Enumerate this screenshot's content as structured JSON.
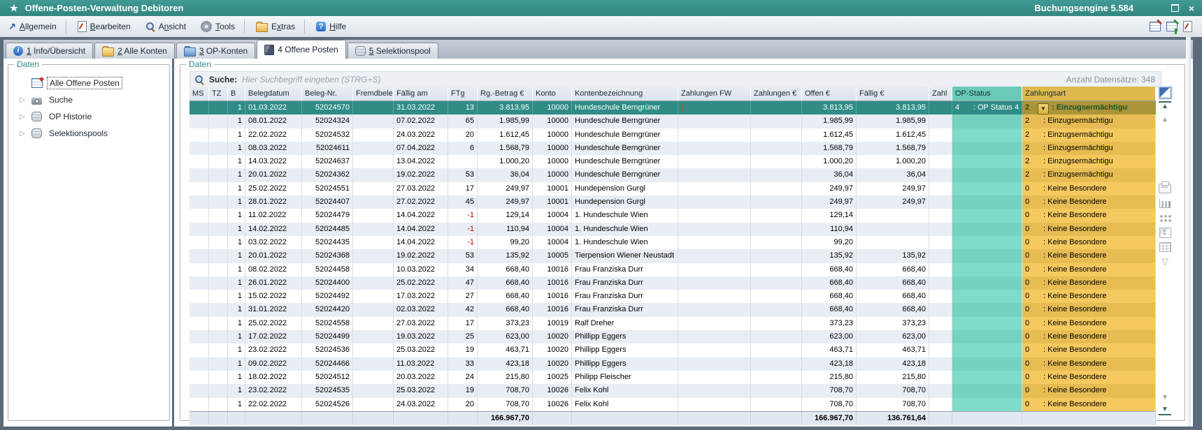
{
  "window": {
    "title": "Offene-Posten-Verwaltung Debitoren",
    "engine": "Buchungsengine 5.584"
  },
  "menu": {
    "items": [
      {
        "label": "Allgemein",
        "underline": 0,
        "icon": "arrow-ne-icon",
        "sep_after": true
      },
      {
        "label": "Bearbeiten",
        "underline": 0,
        "icon": "document-edit-icon",
        "sep_after": false
      },
      {
        "label": "Ansicht",
        "underline": 1,
        "icon": "magnifier-icon",
        "sep_after": false
      },
      {
        "label": "Tools",
        "underline": 0,
        "icon": "gear-icon",
        "sep_after": true
      },
      {
        "label": "Extras",
        "underline": 1,
        "icon": "folder-icon",
        "sep_after": true
      },
      {
        "label": "Hilfe",
        "underline": 0,
        "icon": "help-icon",
        "sep_after": false
      }
    ]
  },
  "tabs": [
    {
      "label": "1 Info/Übersicht",
      "underline": 0,
      "icon": "info-icon",
      "active": false
    },
    {
      "label": "2 Alle Konten",
      "underline": 0,
      "icon": "folder-yellow-icon",
      "active": false
    },
    {
      "label": "3 OP-Konten",
      "underline": 0,
      "icon": "folder-blue-icon",
      "active": false
    },
    {
      "label": "4 Offene Posten",
      "underline": -1,
      "icon": "book-icon",
      "active": true
    },
    {
      "label": "5 Selektionspool",
      "underline": 0,
      "icon": "database-icon",
      "active": false
    }
  ],
  "sidebar": {
    "legend": "Daten",
    "items": [
      {
        "label": "Alle Offene Posten",
        "icon": "table-edit-icon",
        "expandable": false,
        "selected": true
      },
      {
        "label": "Suche",
        "icon": "camera-icon",
        "expandable": true,
        "selected": false
      },
      {
        "label": "OP Historie",
        "icon": "database-icon",
        "expandable": true,
        "selected": false
      },
      {
        "label": "Selektionspools",
        "icon": "database-icon",
        "expandable": true,
        "selected": false
      }
    ]
  },
  "main": {
    "legend": "Daten",
    "search_label": "Suche:",
    "search_placeholder": "Hier Suchbegriff eingeben (STRG+S)",
    "record_count": "Anzahl Datensätze: 348"
  },
  "table": {
    "columns": [
      "MS",
      "TZ",
      "B",
      "Belegdatum",
      "Beleg-Nr.",
      "Fremdbeleg-",
      "Fällig am",
      "FTg",
      "Rg.-Betrag €",
      "Konto",
      "Kontenbezeichnung",
      "Zahlungen FW",
      "Zahlungen €",
      "Offen €",
      "Fällig €",
      "Zahl",
      "OP-Status",
      "Zahlungsart"
    ],
    "selected_index": 0,
    "op_status_selected": {
      "code": "4",
      "label": ": OP Status 4"
    },
    "rows": [
      [
        "01.03.2022",
        "52024570",
        "31.03.2022",
        "13",
        "3.813,95",
        "10000",
        "Hundeschule Berngrüner",
        "3.813,95",
        "3.813,95",
        "2",
        ": Einzugsermächtigu"
      ],
      [
        "08.01.2022",
        "52024324",
        "07.02.2022",
        "65",
        "1.985,99",
        "10000",
        "Hundeschule Berngrüner",
        "1.985,99",
        "1.985,99",
        "2",
        ": Einzugsermächtigu"
      ],
      [
        "22.02.2022",
        "52024532",
        "24.03.2022",
        "20",
        "1.612,45",
        "10000",
        "Hundeschule Berngrüner",
        "1.612,45",
        "1.612,45",
        "2",
        ": Einzugsermächtigu"
      ],
      [
        "08.03.2022",
        "52024611",
        "07.04.2022",
        "6",
        "1.568,79",
        "10000",
        "Hundeschule Berngrüner",
        "1.568,79",
        "1.568,79",
        "2",
        ": Einzugsermächtigu"
      ],
      [
        "14.03.2022",
        "52024637",
        "13.04.2022",
        "",
        "1.000,20",
        "10000",
        "Hundeschule Berngrüner",
        "1.000,20",
        "1.000,20",
        "2",
        ": Einzugsermächtigu"
      ],
      [
        "20.01.2022",
        "52024362",
        "19.02.2022",
        "53",
        "36,04",
        "10000",
        "Hundeschule Berngrüner",
        "36,04",
        "36,04",
        "2",
        ": Einzugsermächtigu"
      ],
      [
        "25.02.2022",
        "52024551",
        "27.03.2022",
        "17",
        "249,97",
        "10001",
        "Hundepension Gurgl",
        "249,97",
        "249,97",
        "0",
        ": Keine Besondere"
      ],
      [
        "28.01.2022",
        "52024407",
        "27.02.2022",
        "45",
        "249,97",
        "10001",
        "Hundepension Gurgl",
        "249,97",
        "249,97",
        "0",
        ": Keine Besondere"
      ],
      [
        "11.02.2022",
        "52024479",
        "14.04.2022",
        "-1",
        "129,14",
        "10004",
        "1. Hundeschule Wien",
        "129,14",
        "",
        "0",
        ": Keine Besondere"
      ],
      [
        "14.02.2022",
        "52024485",
        "14.04.2022",
        "-1",
        "110,94",
        "10004",
        "1. Hundeschule Wien",
        "110,94",
        "",
        "0",
        ": Keine Besondere"
      ],
      [
        "03.02.2022",
        "52024435",
        "14.04.2022",
        "-1",
        "99,20",
        "10004",
        "1. Hundeschule Wien",
        "99,20",
        "",
        "0",
        ": Keine Besondere"
      ],
      [
        "20.01.2022",
        "52024368",
        "19.02.2022",
        "53",
        "135,92",
        "10005",
        "Tierpension Wiener Neustadt",
        "135,92",
        "135,92",
        "0",
        ": Keine Besondere"
      ],
      [
        "08.02.2022",
        "52024458",
        "10.03.2022",
        "34",
        "668,40",
        "10016",
        "Frau Franziska Durr",
        "668,40",
        "668,40",
        "0",
        ": Keine Besondere"
      ],
      [
        "26.01.2022",
        "52024400",
        "25.02.2022",
        "47",
        "668,40",
        "10016",
        "Frau Franziska Durr",
        "668,40",
        "668,40",
        "0",
        ": Keine Besondere"
      ],
      [
        "15.02.2022",
        "52024492",
        "17.03.2022",
        "27",
        "668,40",
        "10016",
        "Frau Franziska Durr",
        "668,40",
        "668,40",
        "0",
        ": Keine Besondere"
      ],
      [
        "31.01.2022",
        "52024420",
        "02.03.2022",
        "42",
        "668,40",
        "10016",
        "Frau Franziska Durr",
        "668,40",
        "668,40",
        "0",
        ": Keine Besondere"
      ],
      [
        "25.02.2022",
        "52024558",
        "27.03.2022",
        "17",
        "373,23",
        "10019",
        "Ralf Dreher",
        "373,23",
        "373,23",
        "0",
        ": Keine Besondere"
      ],
      [
        "17.02.2022",
        "52024499",
        "19.03.2022",
        "25",
        "623,00",
        "10020",
        "Phillipp Eggers",
        "623,00",
        "623,00",
        "0",
        ": Keine Besondere"
      ],
      [
        "23.02.2022",
        "52024536",
        "25.03.2022",
        "19",
        "463,71",
        "10020",
        "Phillipp Eggers",
        "463,71",
        "463,71",
        "0",
        ": Keine Besondere"
      ],
      [
        "09.02.2022",
        "52024466",
        "11.03.2022",
        "33",
        "423,18",
        "10020",
        "Phillipp Eggers",
        "423,18",
        "423,18",
        "0",
        ": Keine Besondere"
      ],
      [
        "18.02.2022",
        "52024512",
        "20.03.2022",
        "24",
        "215,80",
        "10025",
        "Philipp Fleischer",
        "215,80",
        "215,80",
        "0",
        ": Keine Besondere"
      ],
      [
        "23.02.2022",
        "52024535",
        "25.03.2022",
        "19",
        "708,70",
        "10026",
        "Felix Kohl",
        "708,70",
        "708,70",
        "0",
        ": Keine Besondere"
      ],
      [
        "22.02.2022",
        "52024526",
        "24.03.2022",
        "20",
        "708,70",
        "10026",
        "Felix Kohl",
        "708,70",
        "708,70",
        "0",
        ": Keine Besondere"
      ]
    ],
    "totals": {
      "rg_betrag": "166.967,70",
      "offen": "166.967,70",
      "faellig": "136.761,64"
    }
  },
  "colors": {
    "titlebar": "#38908a",
    "selected_row": "#2f8c86",
    "op_status_col": "#80dbc8",
    "zahlungsart_col": "#f5c95e",
    "negative": "#c00000"
  }
}
